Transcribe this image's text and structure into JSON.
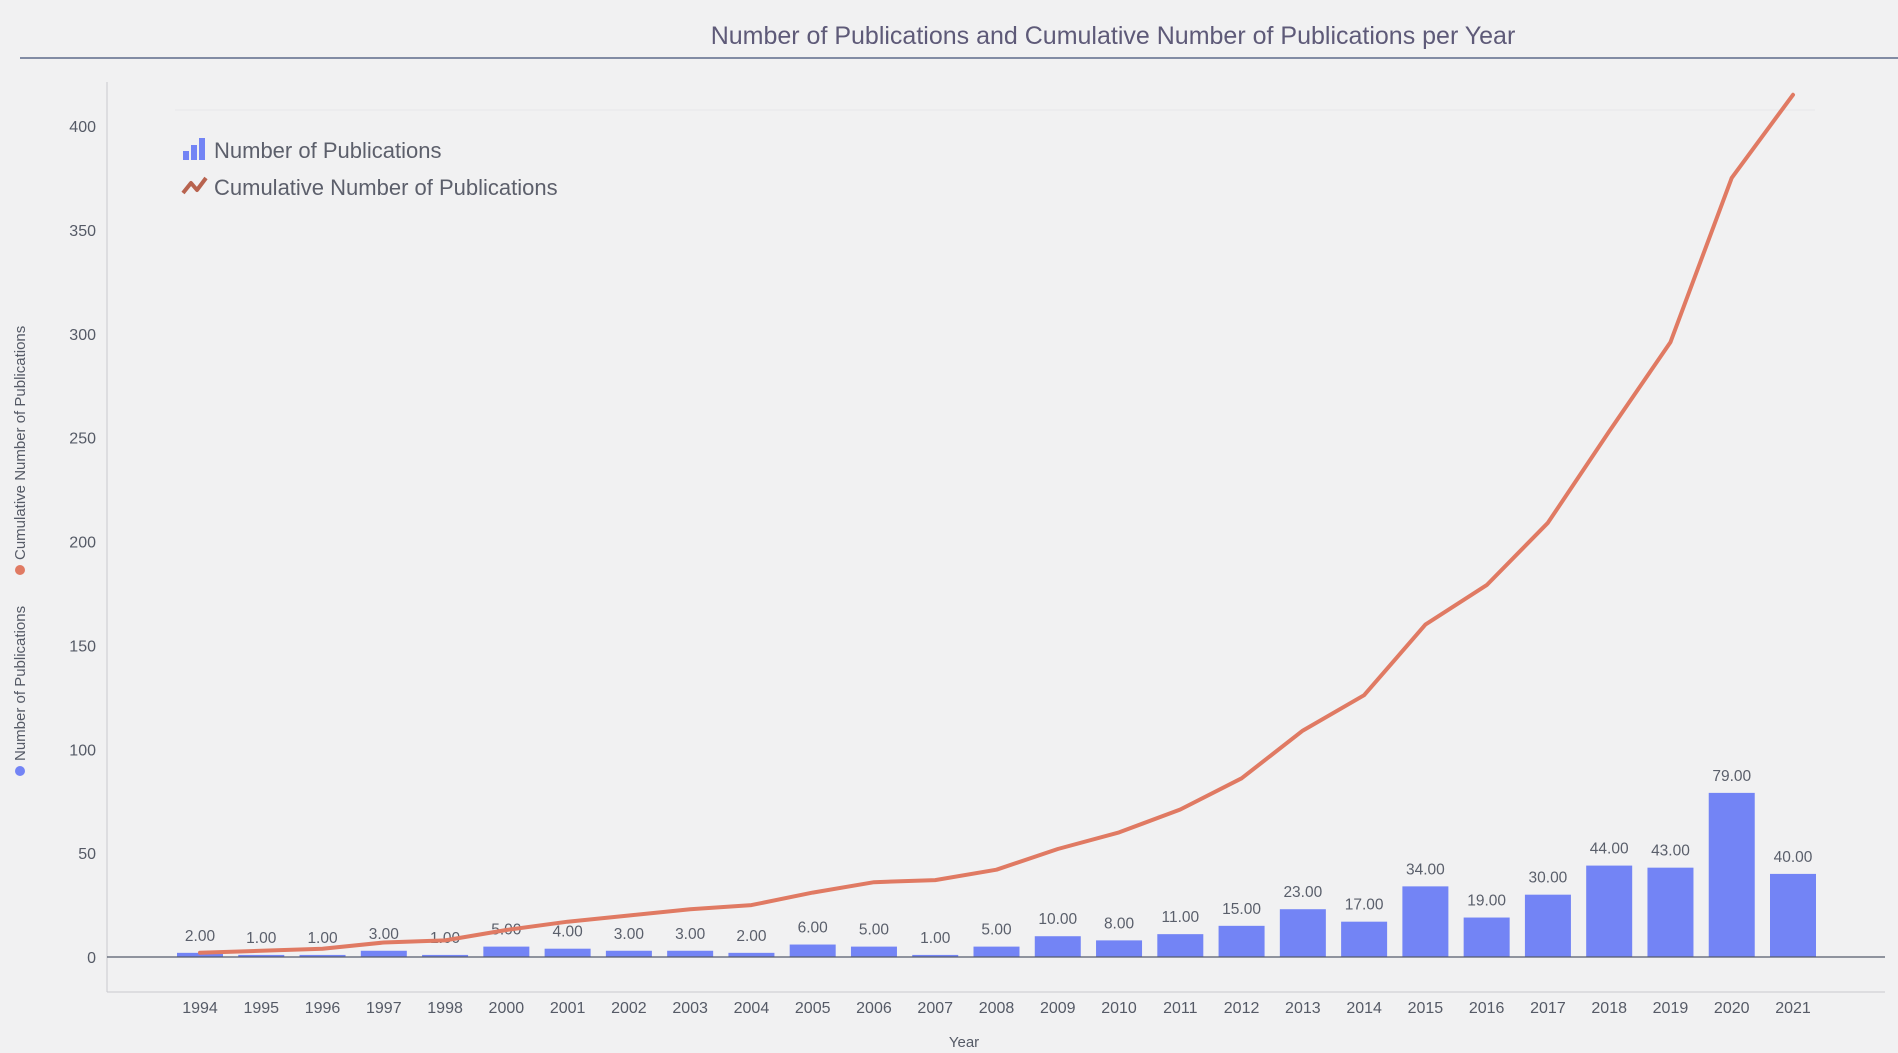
{
  "chart_data": {
    "type": "bar",
    "title": "Number of Publications and Cumulative Number of Publications per Year",
    "xlabel": "Year",
    "ylabel_bars": "Number of Publications",
    "ylabel_line": "Cumulative Number of Publications",
    "categories": [
      "1994",
      "1995",
      "1996",
      "1997",
      "1998",
      "2000",
      "2001",
      "2002",
      "2003",
      "2004",
      "2005",
      "2006",
      "2007",
      "2008",
      "2009",
      "2010",
      "2011",
      "2012",
      "2013",
      "2014",
      "2015",
      "2016",
      "2017",
      "2018",
      "2019",
      "2020",
      "2021"
    ],
    "series": [
      {
        "name": "Number of Publications",
        "type": "bar",
        "color": "#7384f5",
        "values": [
          2,
          1,
          1,
          3,
          1,
          5,
          4,
          3,
          3,
          2,
          6,
          5,
          1,
          5,
          10,
          8,
          11,
          15,
          23,
          17,
          34,
          19,
          30,
          44,
          43,
          79,
          40
        ],
        "labels": [
          "2.00",
          "1.00",
          "1.00",
          "3.00",
          "1.00",
          "5.00",
          "4.00",
          "3.00",
          "3.00",
          "2.00",
          "6.00",
          "5.00",
          "1.00",
          "5.00",
          "10.00",
          "8.00",
          "11.00",
          "15.00",
          "23.00",
          "17.00",
          "34.00",
          "19.00",
          "30.00",
          "44.00",
          "43.00",
          "79.00",
          "40.00"
        ]
      },
      {
        "name": "Cumulative Number of Publications",
        "type": "line",
        "color": "#e07a63",
        "values": [
          2,
          3,
          4,
          7,
          8,
          13,
          17,
          20,
          23,
          25,
          31,
          36,
          37,
          42,
          52,
          60,
          71,
          86,
          109,
          126,
          160,
          179,
          209,
          253,
          296,
          375,
          415
        ]
      }
    ],
    "ylim": [
      0,
      440
    ],
    "yticks": [
      0,
      50,
      100,
      150,
      200,
      250,
      300,
      350,
      400
    ],
    "legend_position": "top-left",
    "grid": false
  }
}
